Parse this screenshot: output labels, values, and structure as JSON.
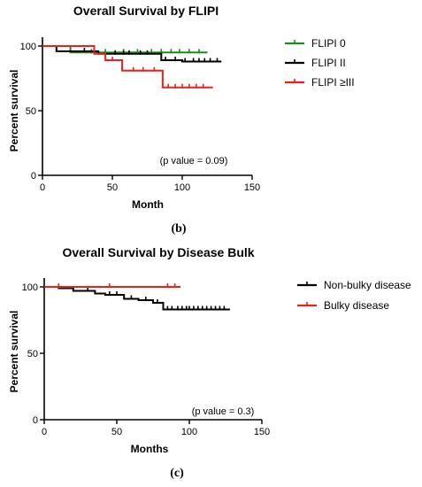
{
  "chart_data": [
    {
      "type": "line",
      "title": "Overall Survival by FLIPI",
      "xlabel": "Month",
      "ylabel": "Percent survival",
      "xlim": [
        0,
        150
      ],
      "ylim": [
        0,
        100
      ],
      "xticks": [
        "0",
        "50",
        "100",
        "150"
      ],
      "yticks": [
        "0",
        "50",
        "100"
      ],
      "annotation": "(p value = 0.09)",
      "panel_label": "(b)",
      "legend_position": "right",
      "series": [
        {
          "name": "FLIPI 0",
          "color": "#1e8a1e",
          "x": [
            0,
            20,
            118
          ],
          "y": [
            100,
            95,
            95
          ],
          "censor_x": [
            35,
            45,
            58,
            68,
            78,
            85,
            92,
            98,
            105,
            112
          ]
        },
        {
          "name": "FLIPI II",
          "color": "#000000",
          "x": [
            0,
            10,
            40,
            85,
            100,
            128
          ],
          "y": [
            100,
            96,
            94,
            89,
            88,
            88
          ],
          "censor_x": [
            30,
            52,
            58,
            62,
            70,
            75,
            88,
            95,
            102,
            108,
            112,
            116,
            120,
            125
          ]
        },
        {
          "name": "FLIPI ≥III",
          "color": "#e8231d",
          "x": [
            0,
            24,
            37,
            45,
            57,
            75,
            86,
            122
          ],
          "y": [
            100,
            100,
            94,
            89,
            81,
            81,
            68,
            68
          ],
          "censor_x": [
            50,
            65,
            72,
            80,
            90,
            95,
            100,
            105,
            110,
            115
          ]
        }
      ]
    },
    {
      "type": "line",
      "title": "Overall Survival by Disease Bulk",
      "xlabel": "Months",
      "ylabel": "Percent survival",
      "xlim": [
        0,
        150
      ],
      "ylim": [
        0,
        100
      ],
      "xticks": [
        "0",
        "50",
        "100",
        "150"
      ],
      "yticks": [
        "0",
        "50",
        "100"
      ],
      "annotation": "(p value = 0.3)",
      "panel_label": "(c)",
      "legend_position": "right",
      "series": [
        {
          "name": "Non-bulky disease",
          "color": "#000000",
          "x": [
            0,
            10,
            20,
            35,
            42,
            55,
            65,
            75,
            82,
            128
          ],
          "y": [
            100,
            99,
            97,
            95,
            94,
            91,
            90,
            88,
            83,
            83
          ],
          "censor_x": [
            30,
            45,
            50,
            60,
            70,
            78,
            85,
            88,
            92,
            95,
            98,
            100,
            103,
            106,
            109,
            112,
            115,
            118,
            121,
            124
          ]
        },
        {
          "name": "Bulky disease",
          "color": "#e8231d",
          "x": [
            0,
            94
          ],
          "y": [
            100,
            100
          ],
          "censor_x": [
            10,
            45,
            85,
            90
          ]
        }
      ]
    }
  ]
}
